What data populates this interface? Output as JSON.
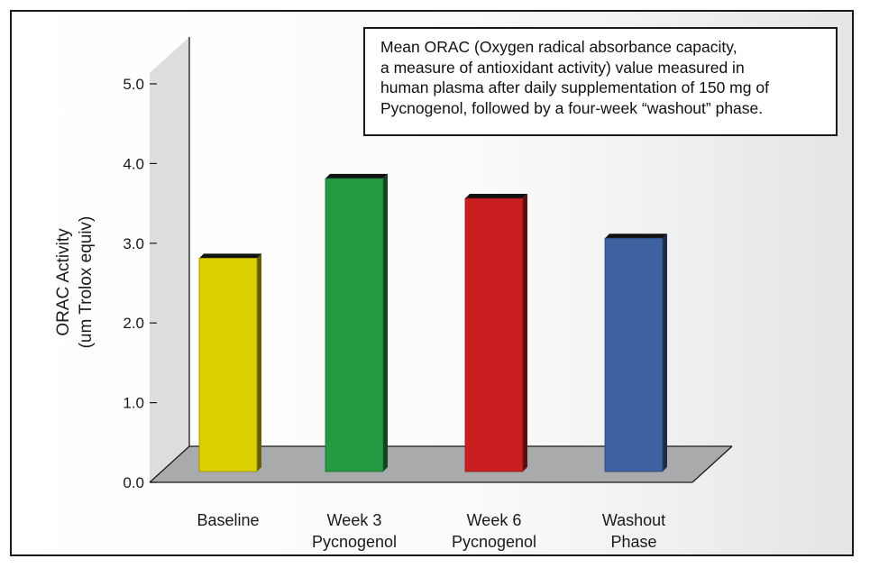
{
  "chart_data": {
    "type": "bar",
    "categories": [
      [
        "Baseline"
      ],
      [
        "Week 3",
        "Pycnogenol"
      ],
      [
        "Week 6",
        "Pycnogenol"
      ],
      [
        "Washout",
        "Phase"
      ]
    ],
    "values": [
      2.7,
      3.7,
      3.45,
      2.95
    ],
    "colors": [
      "#ddd000",
      "#249a42",
      "#c91f21",
      "#3e62a1"
    ],
    "ylabel": [
      "ORAC Activity",
      "(um Trolox equiv)"
    ],
    "ylim": [
      0,
      5
    ],
    "yticks": [
      "0.0",
      "1.0",
      "2.0",
      "3.0",
      "4.0",
      "5.0"
    ],
    "grid": false,
    "annotation": [
      "Mean ORAC (Oxygen radical absorbance capacity,",
      "a measure of antioxidant activity) value measured in",
      "human plasma after daily supplementation of 150 mg of",
      "Pycnogenol, followed by a four-week “washout” phase."
    ]
  }
}
